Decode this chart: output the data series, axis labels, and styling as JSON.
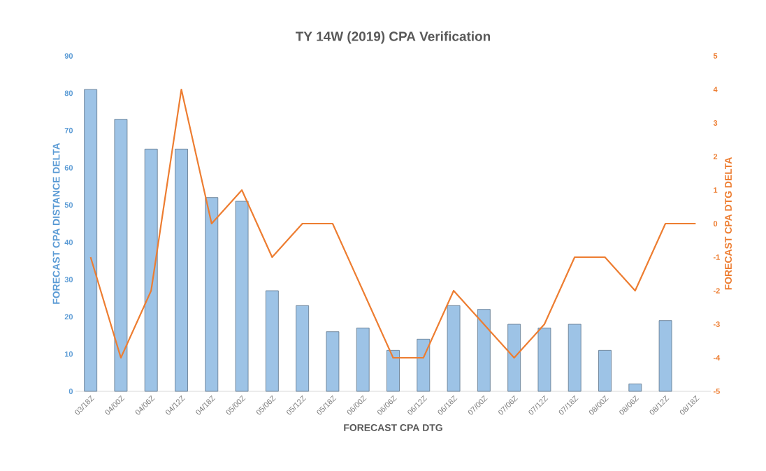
{
  "chart_data": {
    "type": "bar",
    "title": "TY 14W (2019) CPA Verification",
    "xlabel": "FORECAST CPA DTG",
    "ylabel": "FORECAST CPA DISTANCE DELTA",
    "y2label": "FORECAST CPA DTG DELTA",
    "categories": [
      "03/18Z",
      "04/00Z",
      "04/06Z",
      "04/12Z",
      "04/18Z",
      "05/00Z",
      "05/06Z",
      "05/12Z",
      "05/18Z",
      "06/00Z",
      "06/06Z",
      "06/12Z",
      "06/18Z",
      "07/00Z",
      "07/06Z",
      "07/12Z",
      "07/18Z",
      "08/00Z",
      "08/06Z",
      "08/12Z",
      "08/18Z"
    ],
    "series": [
      {
        "color": "#9dc3e6",
        "values": [
          81,
          73,
          65,
          65,
          52,
          51,
          27,
          23,
          16,
          17,
          11,
          14,
          23,
          22,
          18,
          17,
          18,
          11,
          2,
          19,
          null
        ]
      },
      {
        "type": "line",
        "axis": "y2",
        "color": "#ed7d31",
        "values": [
          -1,
          -4,
          -2,
          4,
          0,
          1,
          -1,
          0,
          0,
          -2,
          -4,
          -4,
          -2,
          -3,
          -4,
          -3,
          -1,
          -1,
          -2,
          0,
          0
        ]
      }
    ],
    "ylim": [
      0,
      90
    ],
    "yticks": [
      0,
      10,
      20,
      30,
      40,
      50,
      60,
      70,
      80,
      90
    ],
    "y2lim": [
      -5,
      5
    ],
    "y2ticks": [
      -5,
      -4,
      -3,
      -2,
      -1,
      0,
      1,
      2,
      3,
      4,
      5
    ]
  }
}
